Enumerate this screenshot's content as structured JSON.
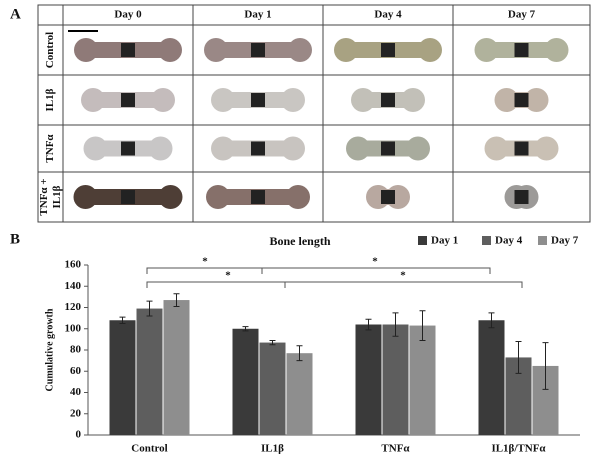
{
  "panel_a": {
    "label": "A",
    "columns": [
      "Day 0",
      "Day 1",
      "Day 4",
      "Day 7"
    ],
    "rows": [
      "Control",
      "IL1β",
      "TNFα",
      [
        "TNFα +",
        "IL1β"
      ]
    ]
  },
  "chart_data": {
    "type": "bar",
    "panel_label": "B",
    "title": "Bone length",
    "y_label": "Cumulative growth",
    "categories": [
      "Control",
      "IL1β",
      "TNFα",
      "IL1β/TNFα"
    ],
    "series": [
      {
        "name": "Day 1",
        "color": "#3a3a3a",
        "values": [
          108,
          100,
          104,
          108
        ],
        "errors": [
          3,
          2,
          5,
          7
        ]
      },
      {
        "name": "Day 4",
        "color": "#5e5e5e",
        "values": [
          119,
          87,
          104,
          73
        ],
        "errors": [
          7,
          2,
          11,
          15
        ]
      },
      {
        "name": "Day 7",
        "color": "#8e8e8e",
        "values": [
          127,
          77,
          103,
          65
        ],
        "errors": [
          6,
          7,
          14,
          22
        ]
      }
    ],
    "ylim": [
      0,
      160
    ],
    "yticks": [
      0,
      20,
      40,
      60,
      80,
      100,
      120,
      140,
      160
    ],
    "annotations": [
      "*",
      "*",
      "*",
      "*"
    ]
  }
}
